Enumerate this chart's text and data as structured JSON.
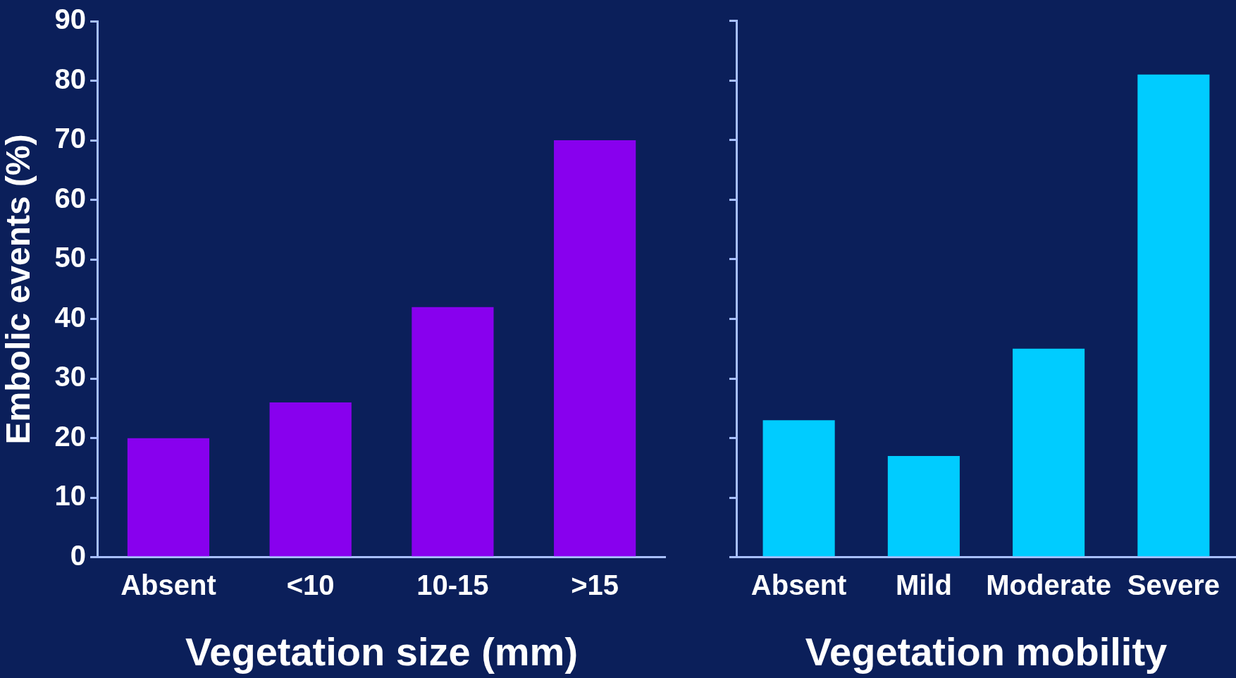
{
  "chart_data": [
    {
      "type": "bar",
      "categories": [
        "Absent",
        "<10",
        "10-15",
        ">15"
      ],
      "values": [
        20,
        26,
        42,
        70
      ],
      "color": "#8800ee",
      "xlabel": "Vegetation size (mm)",
      "ylabel": "Embolic events (%)",
      "ylim": [
        0,
        90
      ],
      "yticks": [
        0,
        10,
        20,
        30,
        40,
        50,
        60,
        70,
        80,
        90
      ],
      "grid": false
    },
    {
      "type": "bar",
      "categories": [
        "Absent",
        "Mild",
        "Moderate",
        "Severe"
      ],
      "values": [
        23,
        17,
        35,
        81
      ],
      "color": "#00ccff",
      "xlabel": "Vegetation mobility",
      "ylim": [
        0,
        90
      ],
      "yticks": [
        0,
        10,
        20,
        30,
        40,
        50,
        60,
        70,
        80,
        90
      ],
      "grid": false,
      "tick_labels": "x"
    }
  ]
}
